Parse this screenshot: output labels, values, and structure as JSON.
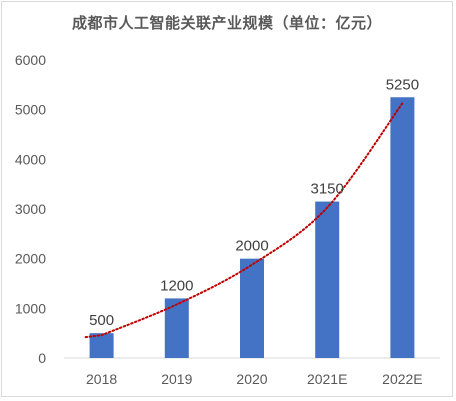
{
  "chart_data": {
    "type": "bar",
    "title": "成都市人工智能关联产业规模（单位：亿元）",
    "categories": [
      "2018",
      "2019",
      "2020",
      "2021E",
      "2022E"
    ],
    "values": [
      500,
      1200,
      2000,
      3150,
      5250
    ],
    "data_labels": [
      "500",
      "1200",
      "2000",
      "3150",
      "5250"
    ],
    "ylim": [
      0,
      6000
    ],
    "yticks": [
      "0",
      "1000",
      "2000",
      "3000",
      "4000",
      "5000",
      "6000"
    ],
    "grid": false,
    "legend": "none",
    "trendline": "dotted",
    "colors": {
      "bar": "#4472c4",
      "trendline": "#c00000",
      "axis": "#d9d9d9",
      "text": "#595959"
    }
  }
}
